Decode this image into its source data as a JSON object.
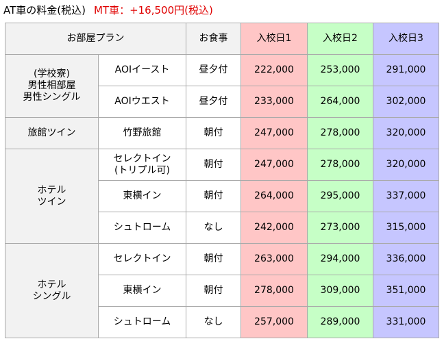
{
  "heading": {
    "at_label": "AT車の料金(税込)",
    "mt_label": "MT車：+16,500円(税込)"
  },
  "colors": {
    "header_bg": "#f2f2f2",
    "date1_bg": "#ffc6c6",
    "date2_bg": "#c6ffc6",
    "date3_bg": "#c6c6ff",
    "mt_text": "#e00000",
    "border": "#a9a9a9"
  },
  "table": {
    "headers": {
      "plan": "お部屋プラン",
      "meal": "お食事",
      "date1": "入校日1",
      "date2": "入校日2",
      "date3": "入校日3"
    },
    "groups": [
      {
        "name": "(学校寮)\n男性相部屋\n男性シングル",
        "rows": [
          {
            "room": "AOIイースト",
            "meal": "昼夕付",
            "p1": "222,000",
            "p2": "253,000",
            "p3": "291,000"
          },
          {
            "room": "AOIウエスト",
            "meal": "昼夕付",
            "p1": "233,000",
            "p2": "264,000",
            "p3": "302,000"
          }
        ]
      },
      {
        "name": "旅館ツイン",
        "rows": [
          {
            "room": "竹野旅館",
            "meal": "朝付",
            "p1": "247,000",
            "p2": "278,000",
            "p3": "320,000"
          }
        ]
      },
      {
        "name": "ホテル\nツイン",
        "rows": [
          {
            "room": "セレクトイン\n(トリプル可)",
            "meal": "朝付",
            "p1": "247,000",
            "p2": "278,000",
            "p3": "320,000"
          },
          {
            "room": "東横イン",
            "meal": "朝付",
            "p1": "264,000",
            "p2": "295,000",
            "p3": "337,000"
          },
          {
            "room": "シュトローム",
            "meal": "なし",
            "p1": "242,000",
            "p2": "273,000",
            "p3": "315,000"
          }
        ]
      },
      {
        "name": "ホテル\nシングル",
        "rows": [
          {
            "room": "セレクトイン",
            "meal": "朝付",
            "p1": "263,000",
            "p2": "294,000",
            "p3": "336,000"
          },
          {
            "room": "東横イン",
            "meal": "朝付",
            "p1": "278,000",
            "p2": "309,000",
            "p3": "351,000"
          },
          {
            "room": "シュトローム",
            "meal": "なし",
            "p1": "257,000",
            "p2": "289,000",
            "p3": "331,000"
          }
        ]
      }
    ]
  }
}
